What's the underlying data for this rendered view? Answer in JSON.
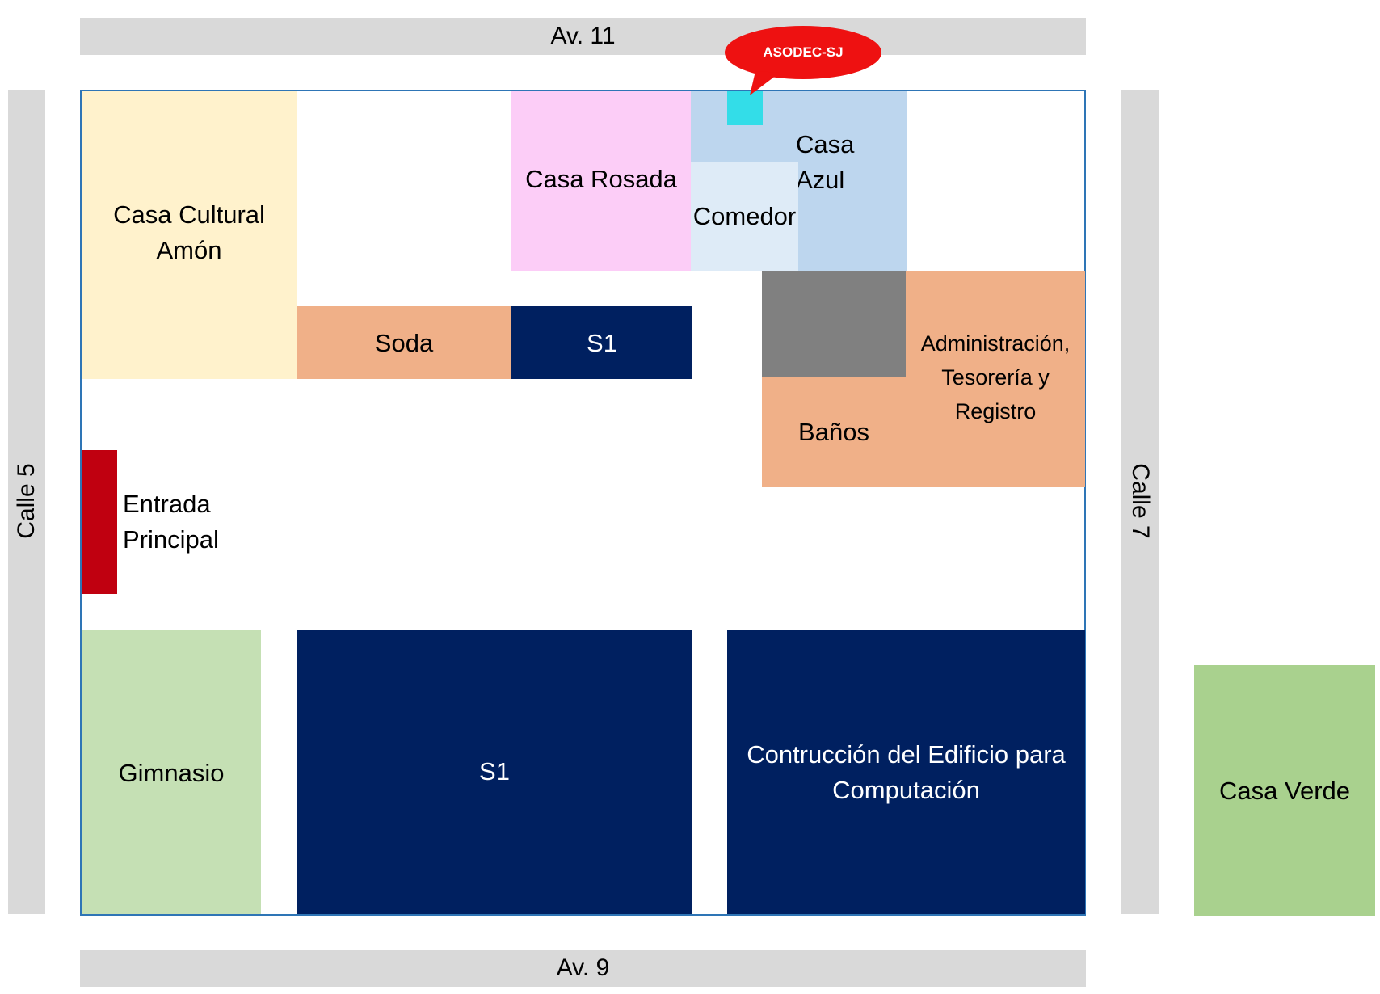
{
  "roads": {
    "north": "Av. 11",
    "south": "Av. 9",
    "west": "Calle 5",
    "east": "Calle 7"
  },
  "buildings": {
    "casa_cultural": [
      "Casa Cultural",
      "Amón"
    ],
    "casa_rosada": "Casa Rosada",
    "casa_azul": [
      "Casa",
      "Azul"
    ],
    "comedor": "Comedor",
    "soda": "Soda",
    "s1_small": "S1",
    "banos": "Baños",
    "administracion": [
      "Administración,",
      "Tesorería y",
      "Registro"
    ],
    "entrada": [
      "Entrada",
      "Principal"
    ],
    "gimnasio": "Gimnasio",
    "s1_large": "S1",
    "computacion": [
      "Contrucción del Edificio para",
      "Computación"
    ],
    "casa_verde": "Casa Verde"
  },
  "callout": "ASODEC-SJ",
  "colors": {
    "road": "#d9d9d9",
    "casa_cultural": "#fff2cc",
    "casa_rosada": "#fccdf7",
    "casa_azul": "#bdd6ee",
    "comedor": "#deebf7",
    "soda": "#f0b088",
    "navy": "#002060",
    "gray_block": "#808080",
    "entrada": "#c00010",
    "gimnasio": "#c5e0b4",
    "casa_verde": "#a9d18e",
    "callout": "#ee1111",
    "marker": "#33dde8",
    "campus_border": "#2e75b6"
  }
}
